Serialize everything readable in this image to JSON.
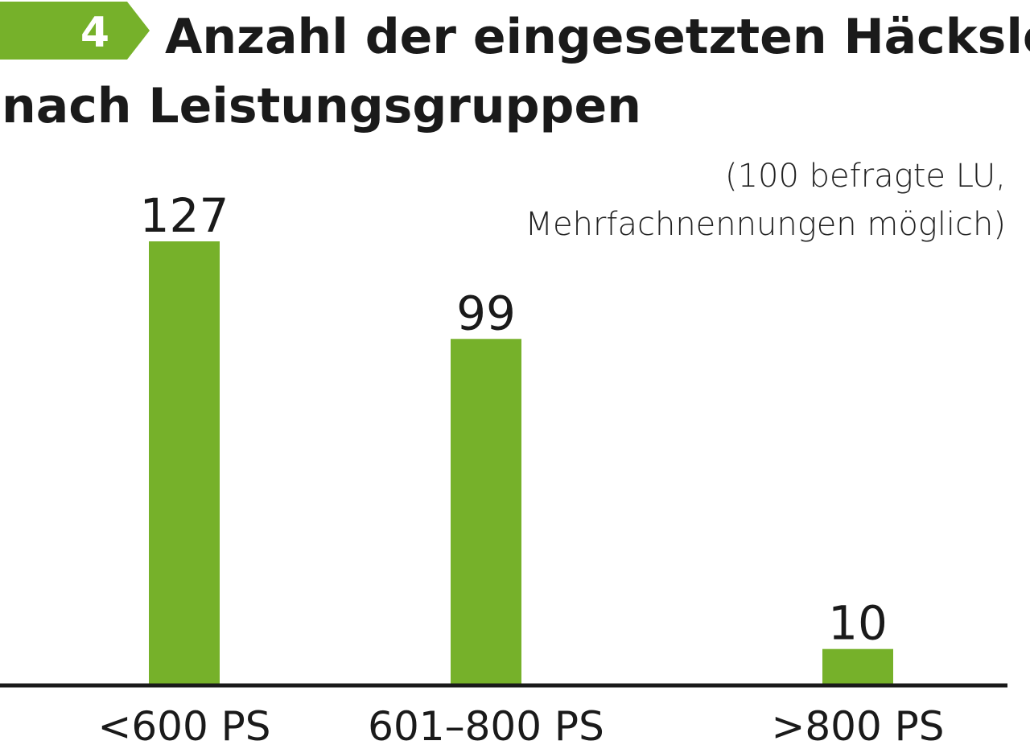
{
  "badge": {
    "number": "4"
  },
  "title": {
    "line1": "Anzahl der eingesetzten Häcksler",
    "line2": "nach Leistungsgruppen"
  },
  "note": {
    "line1": "(100 befragte LU,",
    "line2": "Mehrfachnennungen möglich)"
  },
  "colors": {
    "accent": "#76b12a",
    "bar": "#76b12a",
    "axis": "#1a1a1a",
    "text": "#1a1a1a"
  },
  "chart_data": {
    "type": "bar",
    "title": "Anzahl der eingesetzten Häcksler nach Leistungsgruppen",
    "subtitle": "(100 befragte LU, Mehrfachnennungen möglich)",
    "categories": [
      "<600 PS",
      "601–800 PS",
      ">800 PS"
    ],
    "values": [
      127,
      99,
      10
    ],
    "value_labels": [
      "127",
      "99",
      "10"
    ],
    "xlabel": "",
    "ylabel": "",
    "ylim": [
      0,
      127
    ],
    "grid": false,
    "legend": "none"
  }
}
